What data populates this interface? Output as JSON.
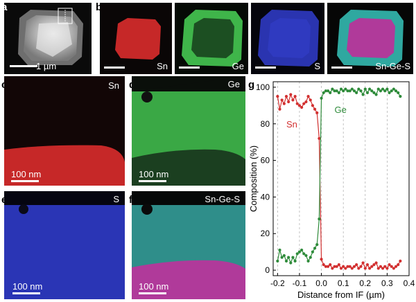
{
  "figure": {
    "panel_letters": {
      "a": "a",
      "b": "b",
      "c": "c",
      "d": "d",
      "e": "e",
      "f": "f",
      "g": "g"
    },
    "panel_a": {
      "scale_label": "1 µm"
    },
    "panel_b": {
      "maps": [
        "Sn",
        "Ge",
        "S",
        "Sn-Ge-S"
      ]
    },
    "panel_c": {
      "element": "Sn",
      "scale_label": "100 nm"
    },
    "panel_d": {
      "element": "Ge",
      "scale_label": "100 nm"
    },
    "panel_e": {
      "element": "S",
      "scale_label": "100 nm"
    },
    "panel_f": {
      "element": "Sn-Ge-S",
      "scale_label": "100 nm"
    }
  },
  "colors": {
    "sn": "#d23030",
    "ge": "#2e8b3a",
    "s": "#3a45c8"
  },
  "chart_data": {
    "type": "line",
    "xlabel": "Distance from IF (µm)",
    "ylabel": "Composition (%)",
    "xlim": [
      -0.22,
      0.4
    ],
    "ylim": [
      -3,
      103
    ],
    "xticks": [
      "-0.2",
      "-0.1",
      "0.0",
      "0.1",
      "0.2",
      "0.3",
      "0.4"
    ],
    "xtick_values": [
      -0.2,
      -0.1,
      0,
      0.1,
      0.2,
      0.3,
      0.4
    ],
    "yticks": [
      "0",
      "20",
      "40",
      "60",
      "80",
      "100"
    ],
    "ytick_values": [
      0,
      20,
      40,
      60,
      80,
      100
    ],
    "grid": "vertical dashed",
    "series": [
      {
        "name": "Sn",
        "x": [
          -0.2,
          -0.19,
          -0.18,
          -0.17,
          -0.16,
          -0.15,
          -0.14,
          -0.13,
          -0.12,
          -0.11,
          -0.1,
          -0.09,
          -0.08,
          -0.07,
          -0.06,
          -0.05,
          -0.04,
          -0.03,
          -0.02,
          -0.01,
          0,
          0.01,
          0.02,
          0.03,
          0.04,
          0.05,
          0.06,
          0.07,
          0.08,
          0.09,
          0.1,
          0.11,
          0.12,
          0.13,
          0.14,
          0.15,
          0.16,
          0.17,
          0.18,
          0.19,
          0.2,
          0.21,
          0.22,
          0.23,
          0.24,
          0.25,
          0.26,
          0.27,
          0.28,
          0.29,
          0.3,
          0.31,
          0.32,
          0.33,
          0.34,
          0.35,
          0.36
        ],
        "y": [
          95,
          88,
          93,
          91,
          95,
          92,
          96,
          93,
          95,
          91,
          90,
          89,
          91,
          92,
          95,
          93,
          90,
          88,
          86,
          72,
          6,
          3,
          2,
          2,
          3,
          1,
          2,
          2,
          3,
          1,
          2,
          1,
          2,
          2,
          1,
          2,
          3,
          1,
          2,
          4,
          1,
          3,
          1,
          2,
          3,
          4,
          1,
          2,
          1,
          2,
          1,
          3,
          2,
          1,
          2,
          3,
          5
        ]
      },
      {
        "name": "Ge",
        "x": [
          -0.2,
          -0.19,
          -0.18,
          -0.17,
          -0.16,
          -0.15,
          -0.14,
          -0.13,
          -0.12,
          -0.11,
          -0.1,
          -0.09,
          -0.08,
          -0.07,
          -0.06,
          -0.05,
          -0.04,
          -0.03,
          -0.02,
          -0.01,
          0,
          0.01,
          0.02,
          0.03,
          0.04,
          0.05,
          0.06,
          0.07,
          0.08,
          0.09,
          0.1,
          0.11,
          0.12,
          0.13,
          0.14,
          0.15,
          0.16,
          0.17,
          0.18,
          0.19,
          0.2,
          0.21,
          0.22,
          0.23,
          0.24,
          0.25,
          0.26,
          0.27,
          0.28,
          0.29,
          0.3,
          0.31,
          0.32,
          0.33,
          0.34,
          0.35,
          0.36
        ],
        "y": [
          5,
          11,
          7,
          8,
          5,
          7,
          4,
          7,
          5,
          9,
          10,
          11,
          9,
          8,
          5,
          7,
          10,
          12,
          14,
          28,
          94,
          97,
          98,
          98,
          97,
          99,
          98,
          98,
          97,
          99,
          98,
          99,
          98,
          98,
          99,
          98,
          97,
          99,
          98,
          96,
          99,
          97,
          99,
          98,
          97,
          96,
          99,
          98,
          99,
          98,
          99,
          97,
          98,
          99,
          98,
          97,
          95
        ]
      }
    ]
  }
}
